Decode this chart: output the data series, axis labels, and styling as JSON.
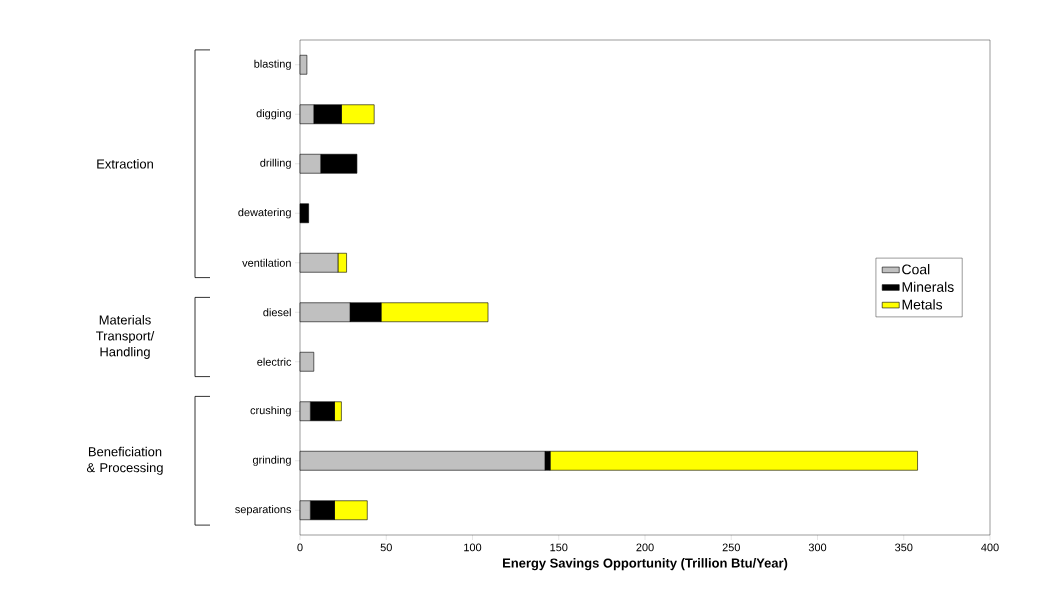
{
  "chart_data": {
    "type": "bar",
    "orientation": "horizontal",
    "stacked": true,
    "xlabel": "Energy Savings Opportunity (Trillion Btu/Year)",
    "categories": [
      "blasting",
      "digging",
      "drilling",
      "dewatering",
      "ventilation",
      "diesel",
      "electric",
      "crushing",
      "grinding",
      "separations"
    ],
    "series": [
      {
        "name": "Coal",
        "color": "#c0c0c0",
        "values": [
          4,
          8,
          12,
          0,
          22,
          29,
          8,
          6,
          142,
          6
        ]
      },
      {
        "name": "Minerals",
        "color": "#000000",
        "values": [
          0,
          16,
          21,
          5,
          0,
          18,
          0,
          14,
          3,
          14
        ]
      },
      {
        "name": "Metals",
        "color": "#ffff00",
        "values": [
          0,
          19,
          0,
          0,
          5,
          62,
          0,
          4,
          213,
          19
        ]
      }
    ],
    "xlim": [
      0,
      400
    ],
    "xticks": [
      0,
      50,
      100,
      150,
      200,
      250,
      300,
      350,
      400
    ],
    "legend": "right",
    "grid": false,
    "annotations": [
      "Extraction",
      "Materials Transport/ Handling",
      "Beneficiation & Processing"
    ]
  }
}
